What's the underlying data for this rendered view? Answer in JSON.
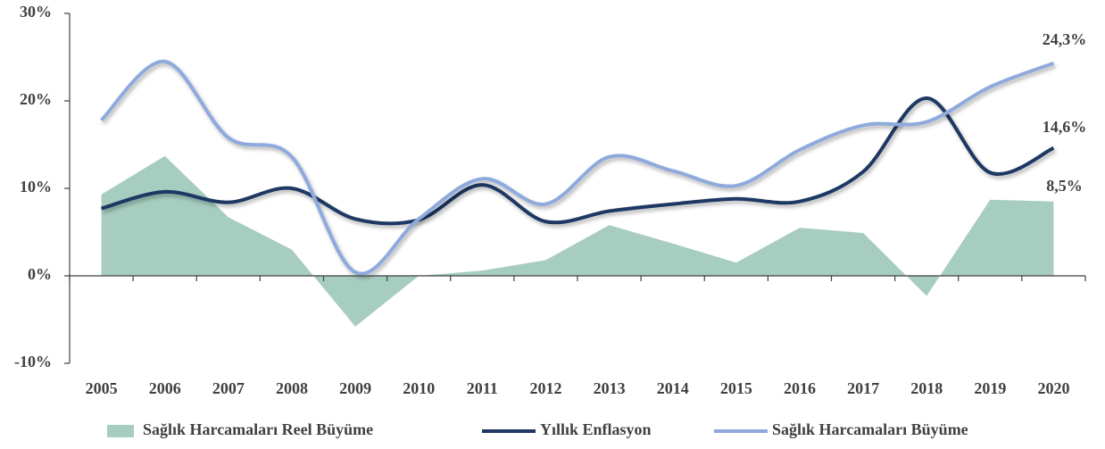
{
  "chart_data": {
    "type": "line",
    "categories": [
      "2005",
      "2006",
      "2007",
      "2008",
      "2009",
      "2010",
      "2011",
      "2012",
      "2013",
      "2014",
      "2015",
      "2016",
      "2017",
      "2018",
      "2019",
      "2020"
    ],
    "series": [
      {
        "name": "Sağlık Harcamaları Reel Büyüme",
        "type": "area",
        "color": "#a6cdbf",
        "values": [
          9.3,
          13.7,
          6.7,
          3.0,
          -5.8,
          0.0,
          0.6,
          1.8,
          5.8,
          3.7,
          1.5,
          5.5,
          4.9,
          -2.3,
          8.7,
          8.5
        ],
        "value_labels": [
          null,
          null,
          null,
          null,
          null,
          null,
          null,
          null,
          null,
          null,
          null,
          null,
          null,
          null,
          null,
          "8,5%"
        ]
      },
      {
        "name": "Yıllık Enflasyon",
        "type": "line",
        "color": "#1f3864",
        "values": [
          7.7,
          9.6,
          8.4,
          10.0,
          6.5,
          6.4,
          10.4,
          6.2,
          7.4,
          8.2,
          8.8,
          8.5,
          11.9,
          20.3,
          11.8,
          14.6
        ],
        "value_labels": [
          null,
          null,
          null,
          null,
          null,
          null,
          null,
          null,
          null,
          null,
          null,
          null,
          null,
          null,
          null,
          "14,6%"
        ]
      },
      {
        "name": "Sağlık Harcamaları Büyüme",
        "type": "line",
        "color": "#8eaadc",
        "values": [
          17.8,
          24.5,
          15.8,
          13.6,
          0.4,
          6.5,
          11.1,
          8.2,
          13.6,
          12.0,
          10.3,
          14.4,
          17.2,
          17.6,
          21.6,
          24.3
        ],
        "value_labels": [
          null,
          null,
          null,
          null,
          null,
          null,
          null,
          null,
          null,
          null,
          null,
          null,
          null,
          null,
          null,
          "24,3%"
        ]
      }
    ],
    "ylim": [
      -10,
      30
    ],
    "yticks": [
      {
        "value": -10,
        "label": "-10%"
      },
      {
        "value": 0,
        "label": "0%"
      },
      {
        "value": 10,
        "label": "10%"
      },
      {
        "value": 20,
        "label": "20%"
      },
      {
        "value": 30,
        "label": "30%"
      }
    ],
    "smooth": true,
    "legend": "bottom"
  }
}
